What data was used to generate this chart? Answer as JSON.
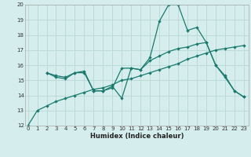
{
  "xlabel": "Humidex (Indice chaleur)",
  "bg_color": "#d5eeed",
  "grid_color": "#b8d8d5",
  "line_color": "#1a7a6e",
  "xlim_min": -0.3,
  "xlim_max": 23.5,
  "ylim_min": 12,
  "ylim_max": 20,
  "xticks": [
    0,
    1,
    2,
    3,
    4,
    5,
    6,
    7,
    8,
    9,
    10,
    11,
    12,
    13,
    14,
    15,
    16,
    17,
    18,
    19,
    20,
    21,
    22,
    23
  ],
  "yticks": [
    12,
    13,
    14,
    15,
    16,
    17,
    18,
    19,
    20
  ],
  "line1_x": [
    0,
    1,
    2,
    3,
    4,
    5,
    6,
    7,
    8,
    9,
    10,
    11,
    12,
    13,
    14,
    15,
    16,
    17,
    18,
    19,
    20,
    21,
    22,
    23
  ],
  "line1_y": [
    12.0,
    13.0,
    13.3,
    13.6,
    13.8,
    14.0,
    14.2,
    14.4,
    14.5,
    14.7,
    15.0,
    15.1,
    15.3,
    15.5,
    15.7,
    15.9,
    16.1,
    16.4,
    16.6,
    16.8,
    17.0,
    17.1,
    17.2,
    17.3
  ],
  "line2_x": [
    2,
    3,
    4,
    5,
    6,
    7,
    8,
    9,
    10,
    11,
    12,
    13,
    14,
    15,
    16,
    17,
    18,
    19,
    20,
    21,
    22,
    23
  ],
  "line2_y": [
    15.5,
    15.3,
    15.2,
    15.5,
    15.6,
    14.3,
    14.3,
    14.6,
    13.8,
    15.8,
    15.7,
    16.5,
    18.9,
    20.0,
    20.0,
    18.3,
    18.5,
    17.5,
    16.0,
    15.3,
    14.3,
    13.9
  ],
  "line3_x": [
    2,
    3,
    4,
    5,
    6,
    7,
    8,
    9,
    10,
    11,
    12,
    13,
    14,
    15,
    16,
    17,
    18,
    19,
    20,
    21,
    22,
    23
  ],
  "line3_y": [
    15.5,
    15.2,
    15.1,
    15.5,
    15.5,
    14.3,
    14.3,
    14.5,
    15.8,
    15.8,
    15.7,
    16.3,
    16.6,
    16.9,
    17.1,
    17.2,
    17.4,
    17.5,
    16.0,
    15.2,
    14.3,
    13.9
  ]
}
